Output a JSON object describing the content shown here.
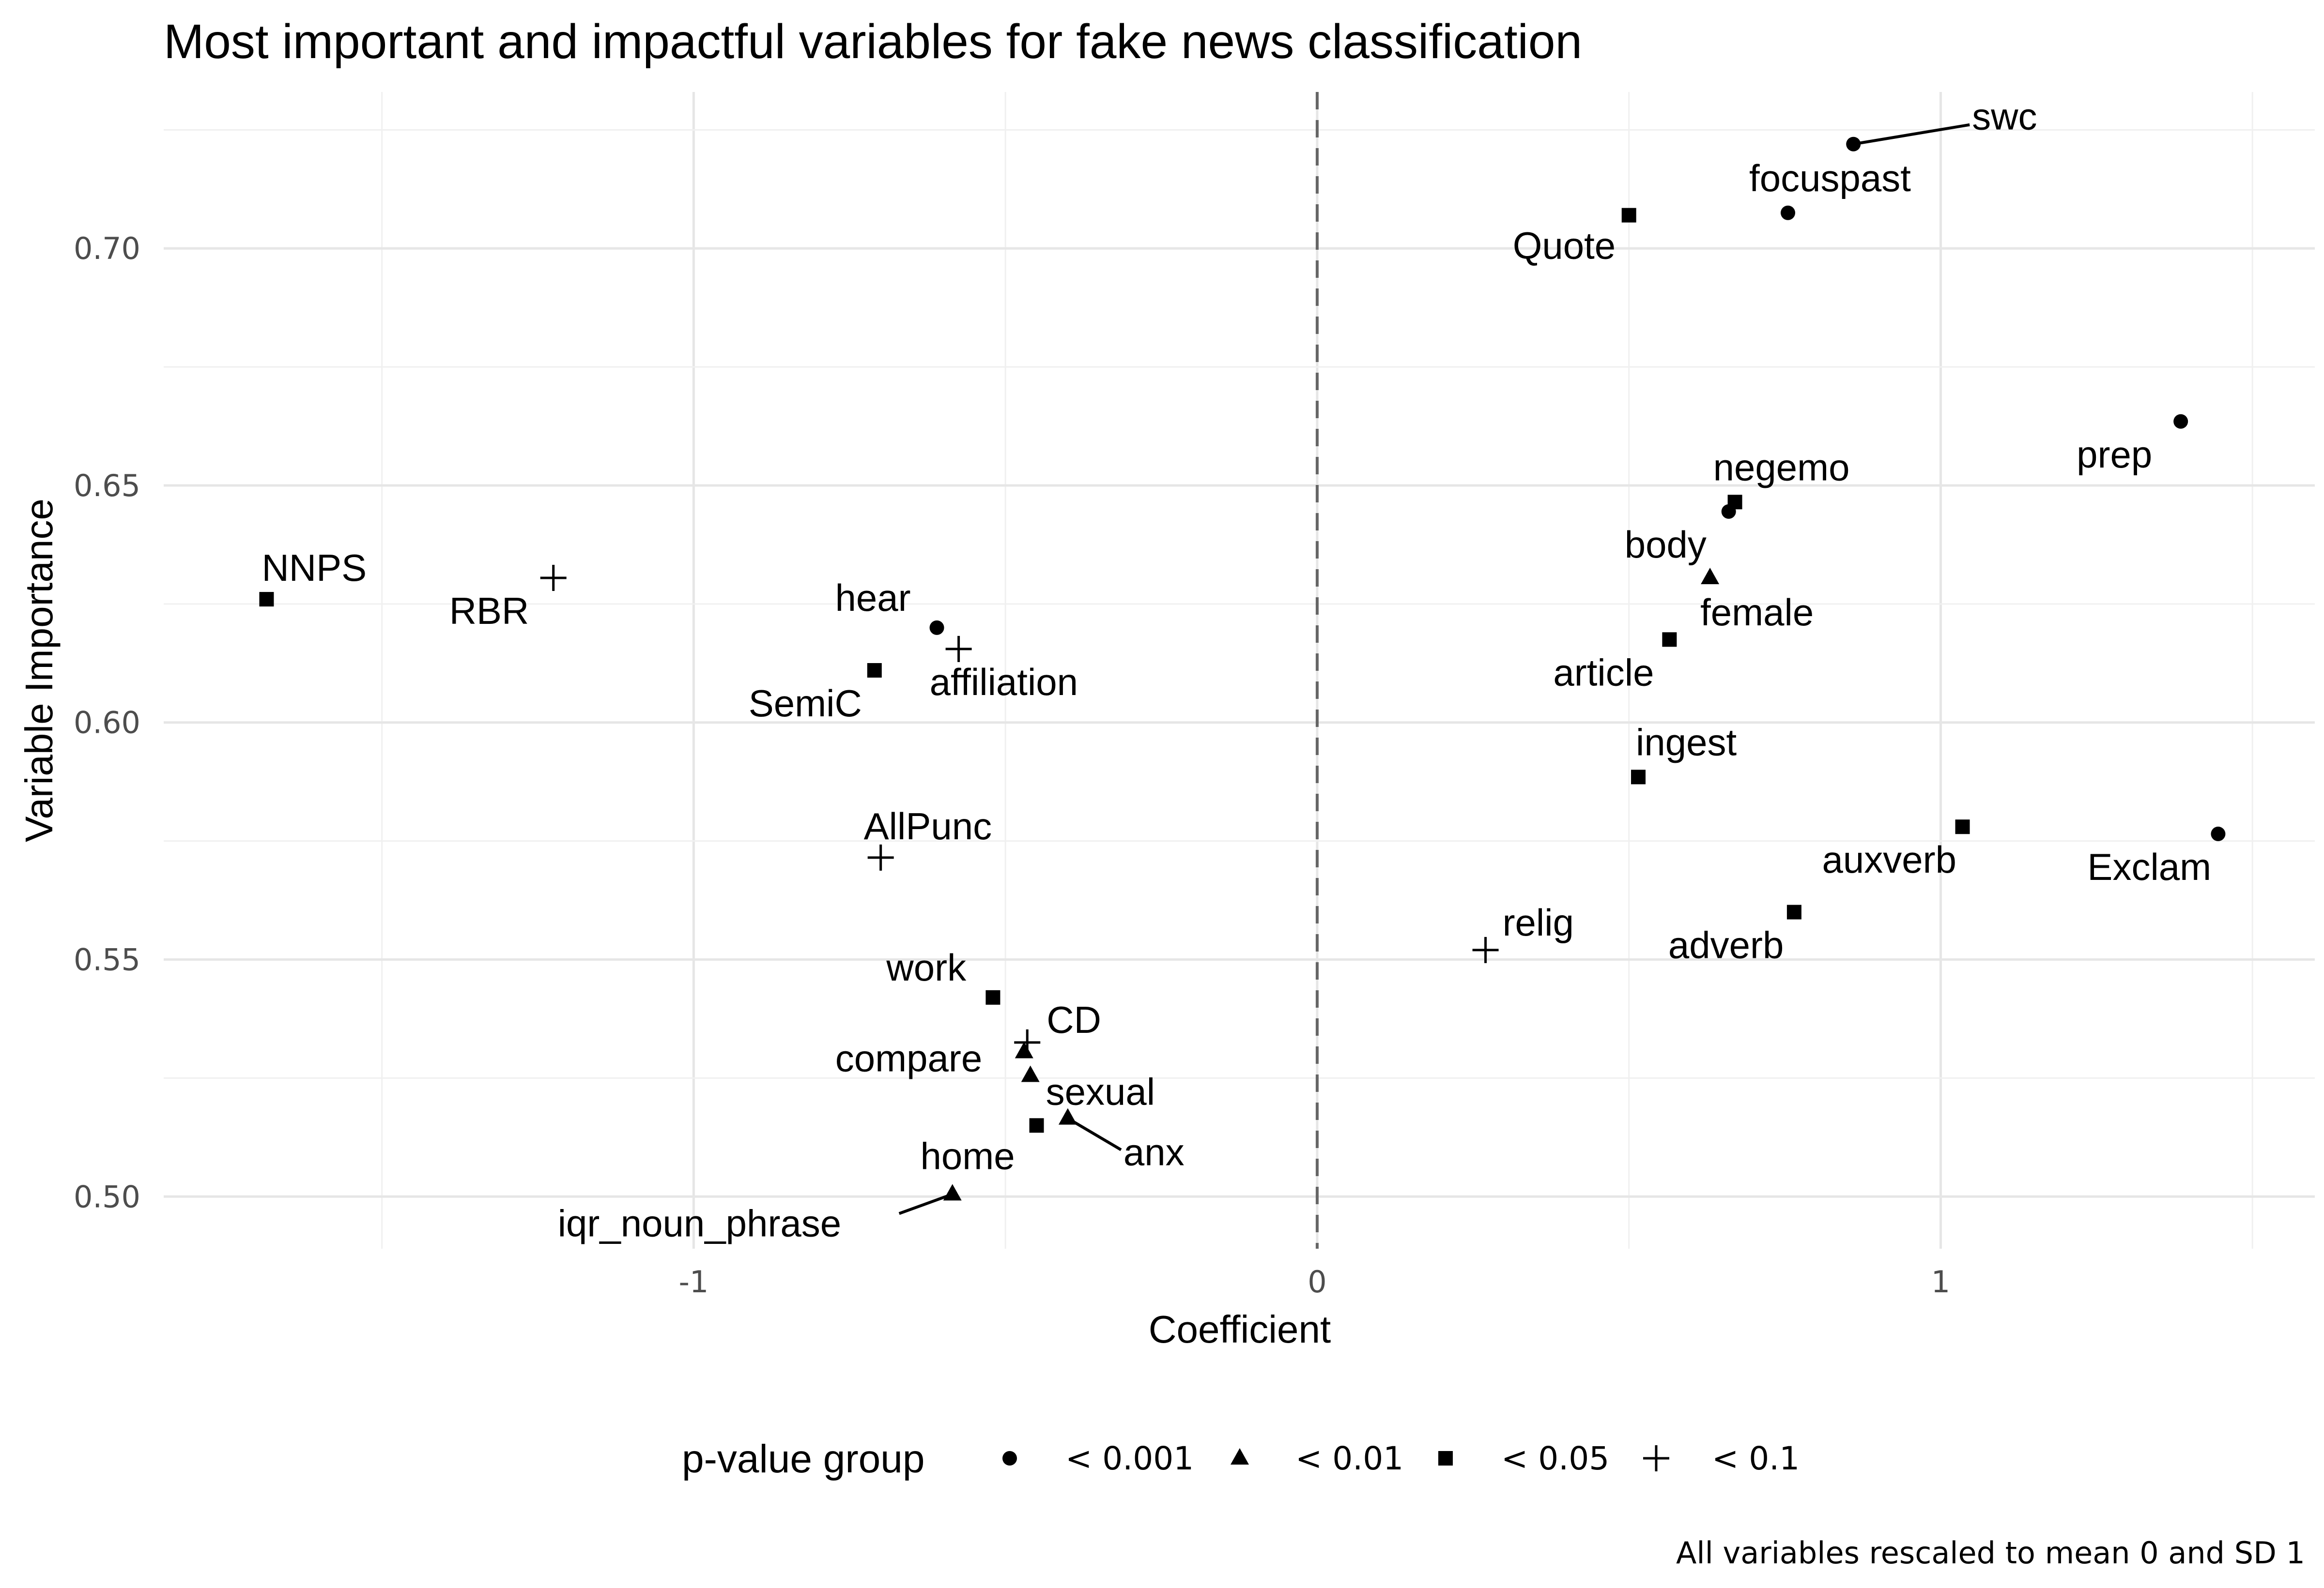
{
  "chart_data": {
    "type": "scatter",
    "title": "Most important and impactful variables for fake news classification",
    "xlabel": "Coefficient",
    "ylabel": "Variable Importance",
    "caption": "All variables rescaled to mean 0 and SD 1",
    "xlim": [
      -1.85,
      1.6
    ],
    "ylim": [
      0.489,
      0.733
    ],
    "x_ticks": [
      -1,
      0,
      1
    ],
    "x_tick_labels": [
      "-1",
      "0",
      "1"
    ],
    "y_ticks": [
      0.5,
      0.55,
      0.6,
      0.65,
      0.7
    ],
    "y_tick_labels": [
      "0.50",
      "0.55",
      "0.60",
      "0.65",
      "0.70"
    ],
    "grid": true,
    "reference_line": {
      "x": 0,
      "style": "dashed"
    },
    "legend": {
      "title": "p-value group",
      "placement": "bottom",
      "entries": [
        {
          "label": "< 0.001",
          "shape": "circle"
        },
        {
          "label": "< 0.01",
          "shape": "triangle"
        },
        {
          "label": "< 0.05",
          "shape": "square"
        },
        {
          "label": "< 0.1",
          "shape": "plus"
        }
      ]
    },
    "points": [
      {
        "label": "swc",
        "x": 0.86,
        "y": 0.722,
        "group": "< 0.001"
      },
      {
        "label": "focuspast",
        "x": 0.755,
        "y": 0.7075,
        "group": "< 0.001"
      },
      {
        "label": "Quote",
        "x": 0.5,
        "y": 0.707,
        "group": "< 0.05"
      },
      {
        "label": "prep",
        "x": 1.385,
        "y": 0.6635,
        "group": "< 0.001"
      },
      {
        "label": "negemo",
        "x": 0.67,
        "y": 0.6465,
        "group": "< 0.05"
      },
      {
        "label": "body",
        "x": 0.66,
        "y": 0.6445,
        "group": "< 0.001"
      },
      {
        "label": "female",
        "x": 0.63,
        "y": 0.6305,
        "group": "< 0.01"
      },
      {
        "label": "article",
        "x": 0.565,
        "y": 0.6175,
        "group": "< 0.05"
      },
      {
        "label": "ingest",
        "x": 0.515,
        "y": 0.5885,
        "group": "< 0.05"
      },
      {
        "label": "auxverb",
        "x": 1.035,
        "y": 0.578,
        "group": "< 0.05"
      },
      {
        "label": "Exclam",
        "x": 1.445,
        "y": 0.5765,
        "group": "< 0.001"
      },
      {
        "label": "adverb",
        "x": 0.765,
        "y": 0.56,
        "group": "< 0.05"
      },
      {
        "label": "relig",
        "x": 0.27,
        "y": 0.552,
        "group": "< 0.1"
      },
      {
        "label": "NNPS",
        "x": -1.685,
        "y": 0.626,
        "group": "< 0.05"
      },
      {
        "label": "RBR",
        "x": -1.225,
        "y": 0.6305,
        "group": "< 0.1"
      },
      {
        "label": "hear",
        "x": -0.61,
        "y": 0.62,
        "group": "< 0.001"
      },
      {
        "label": "affiliation",
        "x": -0.575,
        "y": 0.6155,
        "group": "< 0.1"
      },
      {
        "label": "SemiC",
        "x": -0.71,
        "y": 0.611,
        "group": "< 0.05"
      },
      {
        "label": "AllPunc",
        "x": -0.7,
        "y": 0.5715,
        "group": "< 0.1"
      },
      {
        "label": "work",
        "x": -0.52,
        "y": 0.542,
        "group": "< 0.05"
      },
      {
        "label": "CD",
        "x": -0.465,
        "y": 0.5325,
        "group": "< 0.1"
      },
      {
        "label": "compare",
        "x": -0.47,
        "y": 0.5305,
        "group": "< 0.01"
      },
      {
        "label": "sexual",
        "x": -0.46,
        "y": 0.5255,
        "group": "< 0.01"
      },
      {
        "label": "anx",
        "x": -0.4,
        "y": 0.5165,
        "group": "< 0.01"
      },
      {
        "label": "home",
        "x": -0.45,
        "y": 0.515,
        "group": "< 0.05"
      },
      {
        "label": "iqr_noun_phrase",
        "x": -0.585,
        "y": 0.5005,
        "group": "< 0.01"
      }
    ]
  }
}
